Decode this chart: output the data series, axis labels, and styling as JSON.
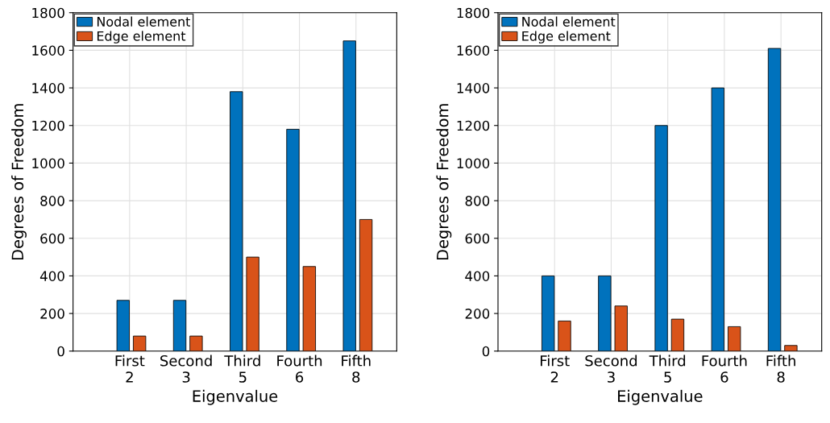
{
  "chart_data": [
    {
      "type": "bar",
      "xlabel": "Eigenvalue",
      "ylabel": "Degrees of Freedom",
      "categories": [
        "First\n2",
        "Second\n3",
        "Third\n5",
        "Fourth\n6",
        "Fifth\n8"
      ],
      "series": [
        {
          "name": "Nodal element",
          "color": "#0072bd",
          "values": [
            270,
            270,
            1380,
            1180,
            1650
          ]
        },
        {
          "name": "Edge element",
          "color": "#d95319",
          "values": [
            80,
            80,
            500,
            450,
            700
          ]
        }
      ],
      "ylim": [
        0,
        1800
      ],
      "yticks": [
        0,
        200,
        400,
        600,
        800,
        1000,
        1200,
        1400,
        1600,
        1800
      ],
      "grid": true,
      "legend": "top left"
    },
    {
      "type": "bar",
      "xlabel": "Eigenvalue",
      "ylabel": "Degrees of Freedom",
      "categories": [
        "First\n2",
        "Second\n3",
        "Third\n5",
        "Fourth\n6",
        "Fifth\n8"
      ],
      "series": [
        {
          "name": "Nodal element",
          "color": "#0072bd",
          "values": [
            400,
            400,
            1200,
            1400,
            1610
          ]
        },
        {
          "name": "Edge element",
          "color": "#d95319",
          "values": [
            160,
            240,
            170,
            130,
            30
          ]
        }
      ],
      "ylim": [
        0,
        1800
      ],
      "yticks": [
        0,
        200,
        400,
        600,
        800,
        1000,
        1200,
        1400,
        1600,
        1800
      ],
      "grid": true,
      "legend": "top left"
    }
  ]
}
